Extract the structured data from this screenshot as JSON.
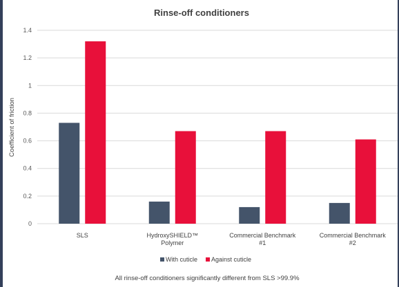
{
  "chart_data": {
    "type": "bar",
    "title": "Rinse-off conditioners",
    "ylabel": "Coefficient of friction",
    "xlabel": "",
    "ylim": [
      0,
      1.4
    ],
    "yticks": [
      0,
      0.2,
      0.4,
      0.6,
      0.8,
      1,
      1.2,
      1.4
    ],
    "grid": true,
    "legend_position": "bottom",
    "categories": [
      [
        "SLS"
      ],
      [
        "HydroxySHIELD™",
        "Polymer"
      ],
      [
        "Commercial Benchmark",
        "#1"
      ],
      [
        "Commercial Benchmark",
        "#2"
      ]
    ],
    "series": [
      {
        "name": "With cuticle",
        "color": "#44546a",
        "values": [
          0.73,
          0.16,
          0.12,
          0.15
        ]
      },
      {
        "name": "Against cuticle",
        "color": "#e8103a",
        "values": [
          1.32,
          0.67,
          0.67,
          0.61
        ]
      }
    ],
    "footnote": "All rinse-off conditioners significantly different from SLS >99.9%"
  }
}
